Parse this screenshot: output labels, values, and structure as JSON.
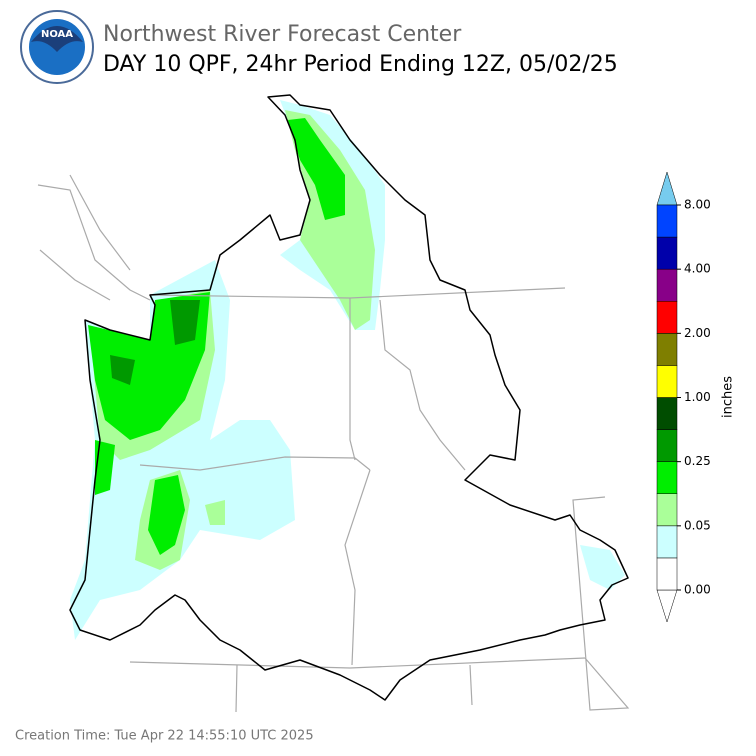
{
  "header": {
    "logo_text": "NOAA",
    "title": "Northwest River Forecast Center",
    "subtitle": "DAY 10 QPF, 24hr Period Ending 12Z, 05/02/25"
  },
  "colorbar": {
    "label": "inches",
    "ticks": [
      "0.00",
      "0.05",
      "0.25",
      "1.00",
      "2.00",
      "4.00",
      "8.00"
    ]
  },
  "footer": {
    "creation_time": "Creation Time: Tue Apr 22 14:55:10 UTC 2025"
  }
}
